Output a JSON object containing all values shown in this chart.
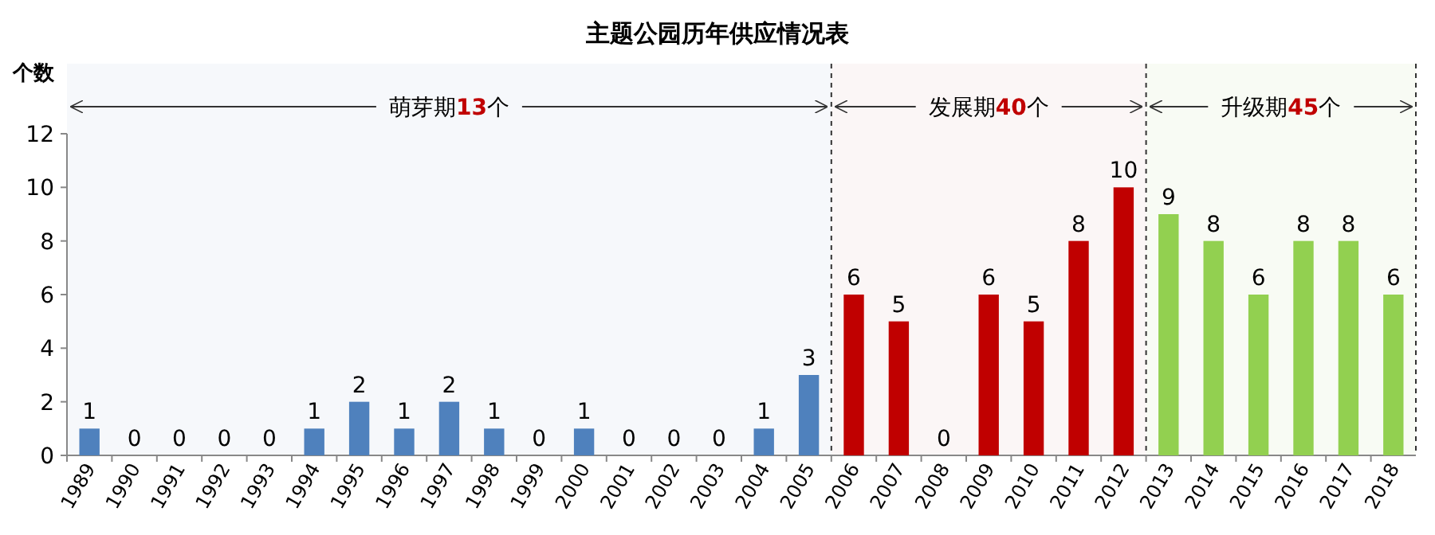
{
  "chart_data": {
    "type": "bar",
    "title": "主题公园历年供应情况表",
    "ylabel": "个数",
    "categories": [
      "1989",
      "1990",
      "1991",
      "1992",
      "1993",
      "1994",
      "1995",
      "1996",
      "1997",
      "1998",
      "1999",
      "2000",
      "2001",
      "2002",
      "2003",
      "2004",
      "2005",
      "2006",
      "2007",
      "2008",
      "2009",
      "2010",
      "2011",
      "2012",
      "2013",
      "2014",
      "2015",
      "2016",
      "2017",
      "2018"
    ],
    "values": [
      1,
      0,
      0,
      0,
      0,
      1,
      2,
      1,
      2,
      1,
      0,
      1,
      0,
      0,
      0,
      1,
      3,
      6,
      5,
      0,
      6,
      5,
      8,
      10,
      9,
      8,
      6,
      8,
      8,
      6
    ],
    "colors": [
      "#4f81bd",
      "#4f81bd",
      "#4f81bd",
      "#4f81bd",
      "#4f81bd",
      "#4f81bd",
      "#4f81bd",
      "#4f81bd",
      "#4f81bd",
      "#4f81bd",
      "#4f81bd",
      "#4f81bd",
      "#4f81bd",
      "#4f81bd",
      "#4f81bd",
      "#4f81bd",
      "#4f81bd",
      "#c00000",
      "#c00000",
      "#c00000",
      "#c00000",
      "#c00000",
      "#c00000",
      "#c00000",
      "#92d050",
      "#92d050",
      "#92d050",
      "#92d050",
      "#92d050",
      "#92d050"
    ],
    "ylim": [
      0,
      12
    ],
    "yticks": [
      0,
      2,
      4,
      6,
      8,
      10,
      12
    ],
    "data_labels": true,
    "grid": false,
    "bands": [
      {
        "axis": "x",
        "from": "1989",
        "to": "2005",
        "label": "萌芽期13个",
        "color": "#f6f8fb"
      },
      {
        "axis": "x",
        "from": "2006",
        "to": "2012",
        "label": "发展期40个",
        "color": "#fbf6f6"
      },
      {
        "axis": "x",
        "from": "2013",
        "to": "2018",
        "label": "升级期45个",
        "color": "#f8fbf4"
      }
    ]
  }
}
